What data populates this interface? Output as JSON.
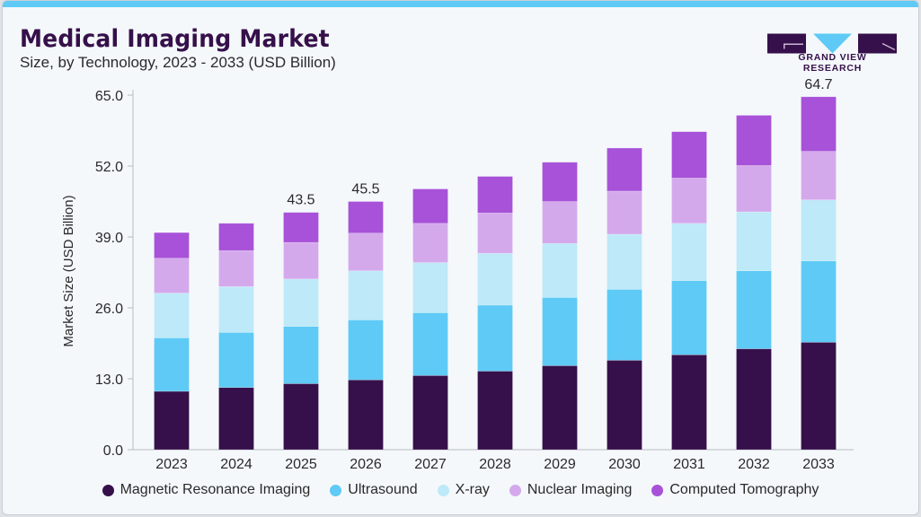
{
  "header": {
    "title": "Medical Imaging Market",
    "subtitle": "Size, by Technology, 2023 - 2033 (USD Billion)",
    "logo_text": "GRAND VIEW RESEARCH"
  },
  "chart_data": {
    "type": "bar",
    "stacked": true,
    "title": "Medical Imaging Market",
    "subtitle": "Size, by Technology, 2023 - 2033 (USD Billion)",
    "xlabel": "",
    "ylabel": "Market Size (USD Billion)",
    "ylim": [
      0,
      65
    ],
    "yticks": [
      "0.0",
      "13.0",
      "26.0",
      "39.0",
      "52.0",
      "65.0"
    ],
    "grid": false,
    "legend_position": "bottom",
    "categories": [
      "2023",
      "2024",
      "2025",
      "2026",
      "2027",
      "2028",
      "2029",
      "2030",
      "2031",
      "2032",
      "2033"
    ],
    "series": [
      {
        "name": "Magnetic Resonance Imaging",
        "color": "#36104a",
        "values": [
          10.7,
          11.4,
          12.1,
          12.8,
          13.6,
          14.4,
          15.4,
          16.4,
          17.4,
          18.5,
          19.7
        ]
      },
      {
        "name": "Ultrasound",
        "color": "#5ecaf5",
        "values": [
          9.8,
          10.1,
          10.5,
          11.0,
          11.5,
          12.1,
          12.5,
          13.0,
          13.6,
          14.3,
          14.9
        ]
      },
      {
        "name": "X-ray",
        "color": "#bde9f8",
        "values": [
          8.2,
          8.4,
          8.7,
          9.0,
          9.2,
          9.5,
          9.9,
          10.1,
          10.5,
          10.8,
          11.2
        ]
      },
      {
        "name": "Nuclear Imaging",
        "color": "#d4a9ec",
        "values": [
          6.4,
          6.6,
          6.7,
          6.9,
          7.2,
          7.4,
          7.7,
          7.9,
          8.3,
          8.5,
          8.9
        ]
      },
      {
        "name": "Computed Tomography",
        "color": "#a752d8",
        "values": [
          4.7,
          5.0,
          5.5,
          5.8,
          6.3,
          6.7,
          7.2,
          7.9,
          8.5,
          9.2,
          10.0
        ]
      }
    ],
    "data_labels": [
      {
        "category": "2025",
        "text": "43.5"
      },
      {
        "category": "2026",
        "text": "45.5"
      },
      {
        "category": "2033",
        "text": "64.7"
      }
    ]
  }
}
